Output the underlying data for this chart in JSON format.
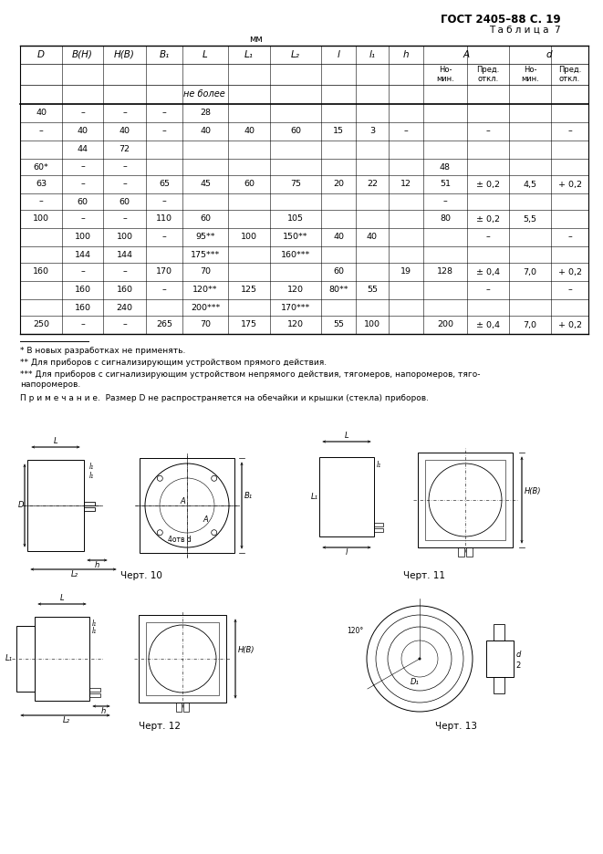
{
  "title_right": "ГОСТ 2405–88 С. 19",
  "subtitle": "Т а б л и ц а  7",
  "mm_label": "мм",
  "ne_bolee": "не более",
  "footnote1": "* В новых разработках не применять.",
  "footnote2": "** Для приборов с сигнализирующим устройством прямого действия.",
  "footnote3": "*** Для приборов с сигнализирующим устройством непрямого действия, тягомеров, напоромеров, тяго-",
  "footnote3b": "напоромеров.",
  "note": "П р и м е ч а н и е.  Размер D не распространяется на обечайки и крышки (стекла) приборов.",
  "chert10": "Черт. 10",
  "chert11": "Черт. 11",
  "chert12": "Черт. 12",
  "chert13": "Черт. 13",
  "bg_color": "#ffffff",
  "table_data": [
    [
      "40",
      "–",
      "–",
      "–",
      "28",
      "",
      "",
      "",
      "",
      "",
      "",
      "",
      "",
      ""
    ],
    [
      "–",
      "40",
      "40",
      "–",
      "40",
      "40",
      "60",
      "15",
      "3",
      "–",
      "",
      "–",
      "",
      "–"
    ],
    [
      "",
      "44",
      "72",
      "",
      "",
      "",
      "",
      "",
      "",
      "",
      "",
      "",
      "",
      ""
    ],
    [
      "60*",
      "–",
      "–",
      "",
      "",
      "",
      "",
      "",
      "",
      "",
      "48",
      "",
      "",
      ""
    ],
    [
      "63",
      "–",
      "–",
      "65",
      "45",
      "60",
      "75",
      "20",
      "22",
      "12",
      "51",
      "± 0,2",
      "4,5",
      "+ 0,2"
    ],
    [
      "–",
      "60",
      "60",
      "–",
      "",
      "",
      "",
      "",
      "",
      "",
      "–",
      "",
      "",
      ""
    ],
    [
      "100",
      "–",
      "–",
      "110",
      "60",
      "",
      "105",
      "",
      "",
      "",
      "80",
      "± 0,2",
      "5,5",
      ""
    ],
    [
      "",
      "100",
      "100",
      "–",
      "95**",
      "100",
      "150**",
      "40",
      "40",
      "",
      "",
      "–",
      "",
      "–"
    ],
    [
      "",
      "144",
      "144",
      "",
      "175***",
      "",
      "160***",
      "",
      "",
      "",
      "",
      "",
      "",
      ""
    ],
    [
      "160",
      "–",
      "–",
      "170",
      "70",
      "",
      "",
      "60",
      "",
      "19",
      "128",
      "± 0,4",
      "7,0",
      "+ 0,2"
    ],
    [
      "",
      "160",
      "160",
      "–",
      "120**",
      "125",
      "120",
      "80**",
      "55",
      "",
      "",
      "–",
      "",
      "–"
    ],
    [
      "",
      "160",
      "240",
      "",
      "200***",
      "",
      "170***",
      "",
      "",
      "",
      "",
      "",
      "",
      ""
    ],
    [
      "250",
      "–",
      "–",
      "265",
      "70",
      "175",
      "120",
      "55",
      "100",
      "",
      "200",
      "± 0,4",
      "7,0",
      "+ 0,2"
    ]
  ]
}
